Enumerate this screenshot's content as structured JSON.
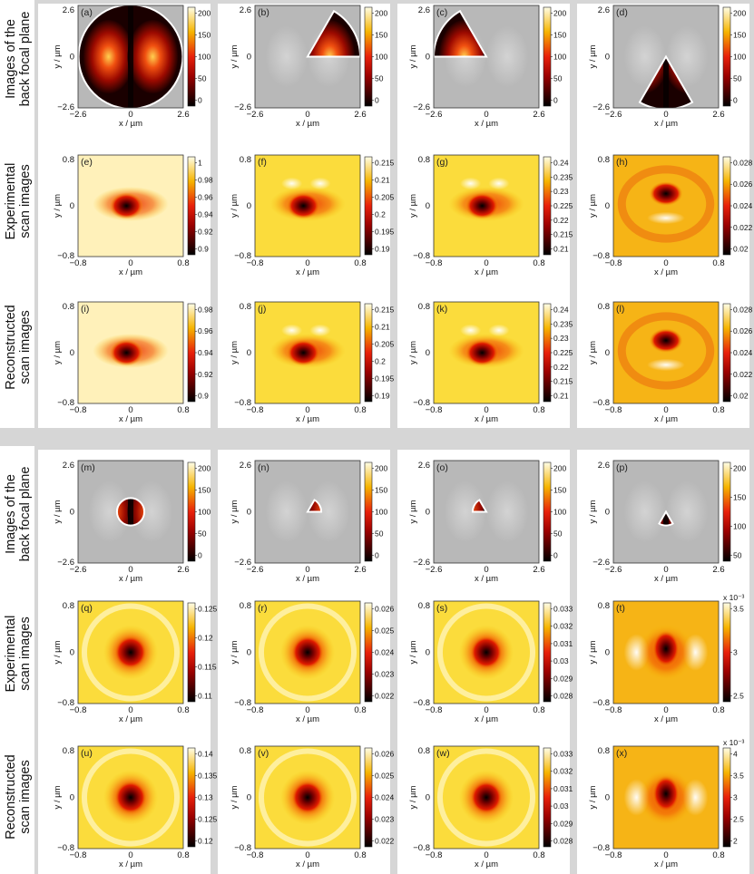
{
  "figure": {
    "axis_labels": {
      "bfp_x": "x / µm",
      "bfp_y": "y / µm",
      "scan_x": "x / µm",
      "scan_y": "y / µm"
    },
    "row_labels": [
      [
        "Images of the",
        "back focal plane"
      ],
      [
        "Experimental",
        "scan images"
      ],
      [
        "Reconstructed",
        "scan images"
      ],
      [
        "Images of the",
        "back focal plane"
      ],
      [
        "Experimental",
        "scan images"
      ],
      [
        "Reconstructed",
        "scan images"
      ]
    ],
    "bfp_ticks": {
      "min": "−2.6",
      "mid": "0",
      "max": "2.6"
    },
    "scan_ticks": {
      "min": "−0.8",
      "mid": "0",
      "max": "0.8"
    },
    "colors": {
      "frame_gray": "#d6d6d6",
      "panel_bg": "#b8b8b8"
    }
  },
  "panels": [
    {
      "letter": "(a)",
      "kind": "bfp",
      "mask": "circle-large",
      "cbar": [
        "0",
        "50",
        "100",
        "150",
        "200"
      ]
    },
    {
      "letter": "(b)",
      "kind": "bfp",
      "mask": "wedge-right",
      "cbar": [
        "0",
        "50",
        "100",
        "150",
        "200"
      ]
    },
    {
      "letter": "(c)",
      "kind": "bfp",
      "mask": "wedge-left",
      "cbar": [
        "0",
        "50",
        "100",
        "150",
        "200"
      ]
    },
    {
      "letter": "(d)",
      "kind": "bfp",
      "mask": "wedge-down",
      "cbar": [
        "0",
        "50",
        "100",
        "150",
        "200"
      ]
    },
    {
      "letter": "(e)",
      "kind": "scan",
      "pattern": "bowtie",
      "cbar": [
        "0.9",
        "0.92",
        "0.94",
        "0.96",
        "0.98",
        "1"
      ]
    },
    {
      "letter": "(f)",
      "kind": "scan",
      "pattern": "bowtie",
      "cbar": [
        "0.19",
        "0.195",
        "0.2",
        "0.205",
        "0.21",
        "0.215"
      ]
    },
    {
      "letter": "(g)",
      "kind": "scan",
      "pattern": "bowtie",
      "cbar": [
        "0.21",
        "0.215",
        "0.22",
        "0.225",
        "0.23",
        "0.235",
        "0.24"
      ]
    },
    {
      "letter": "(h)",
      "kind": "scan",
      "pattern": "ring",
      "cbar": [
        "0.02",
        "0.022",
        "0.024",
        "0.026",
        "0.028"
      ]
    },
    {
      "letter": "(i)",
      "kind": "scan",
      "pattern": "bowtie",
      "cbar": [
        "0.9",
        "0.92",
        "0.94",
        "0.96",
        "0.98"
      ]
    },
    {
      "letter": "(j)",
      "kind": "scan",
      "pattern": "bowtie",
      "cbar": [
        "0.19",
        "0.195",
        "0.2",
        "0.205",
        "0.21",
        "0.215"
      ]
    },
    {
      "letter": "(k)",
      "kind": "scan",
      "pattern": "bowtie",
      "cbar": [
        "0.21",
        "0.215",
        "0.22",
        "0.225",
        "0.23",
        "0.235",
        "0.24"
      ]
    },
    {
      "letter": "(l)",
      "kind": "scan",
      "pattern": "ring",
      "cbar": [
        "0.02",
        "0.022",
        "0.024",
        "0.026",
        "0.028"
      ]
    },
    {
      "letter": "(m)",
      "kind": "bfp",
      "mask": "circle-small",
      "cbar": [
        "0",
        "50",
        "100",
        "150",
        "200"
      ]
    },
    {
      "letter": "(n)",
      "kind": "bfp",
      "mask": "small-wedge-right",
      "cbar": [
        "0",
        "50",
        "100",
        "150",
        "200"
      ]
    },
    {
      "letter": "(o)",
      "kind": "bfp",
      "mask": "small-wedge-left",
      "cbar": [
        "0",
        "50",
        "100",
        "150",
        "200"
      ]
    },
    {
      "letter": "(p)",
      "kind": "bfp",
      "mask": "small-wedge-down",
      "cbar": [
        "50",
        "100",
        "150",
        "200"
      ]
    },
    {
      "letter": "(q)",
      "kind": "scan",
      "pattern": "spot",
      "cbar": [
        "0.11",
        "0.115",
        "0.12",
        "0.125"
      ]
    },
    {
      "letter": "(r)",
      "kind": "scan",
      "pattern": "spot",
      "cbar": [
        "0.022",
        "0.023",
        "0.024",
        "0.025",
        "0.026"
      ]
    },
    {
      "letter": "(s)",
      "kind": "scan",
      "pattern": "spot",
      "cbar": [
        "0.028",
        "0.029",
        "0.03",
        "0.031",
        "0.032",
        "0.033"
      ]
    },
    {
      "letter": "(t)",
      "kind": "scan",
      "pattern": "ringspot",
      "cbar": [
        "2.5",
        "3",
        "3.5"
      ],
      "exponent": "x 10⁻³"
    },
    {
      "letter": "(u)",
      "kind": "scan",
      "pattern": "spot",
      "cbar": [
        "0.12",
        "0.125",
        "0.13",
        "0.135",
        "0.14"
      ]
    },
    {
      "letter": "(v)",
      "kind": "scan",
      "pattern": "spot",
      "cbar": [
        "0.022",
        "0.023",
        "0.024",
        "0.025",
        "0.026"
      ]
    },
    {
      "letter": "(w)",
      "kind": "scan",
      "pattern": "spot",
      "cbar": [
        "0.028",
        "0.029",
        "0.03",
        "0.031",
        "0.032",
        "0.033"
      ]
    },
    {
      "letter": "(x)",
      "kind": "scan",
      "pattern": "ringspot",
      "cbar": [
        "2",
        "2.5",
        "3",
        "3.5",
        "4"
      ],
      "exponent": "x 10⁻³"
    }
  ]
}
